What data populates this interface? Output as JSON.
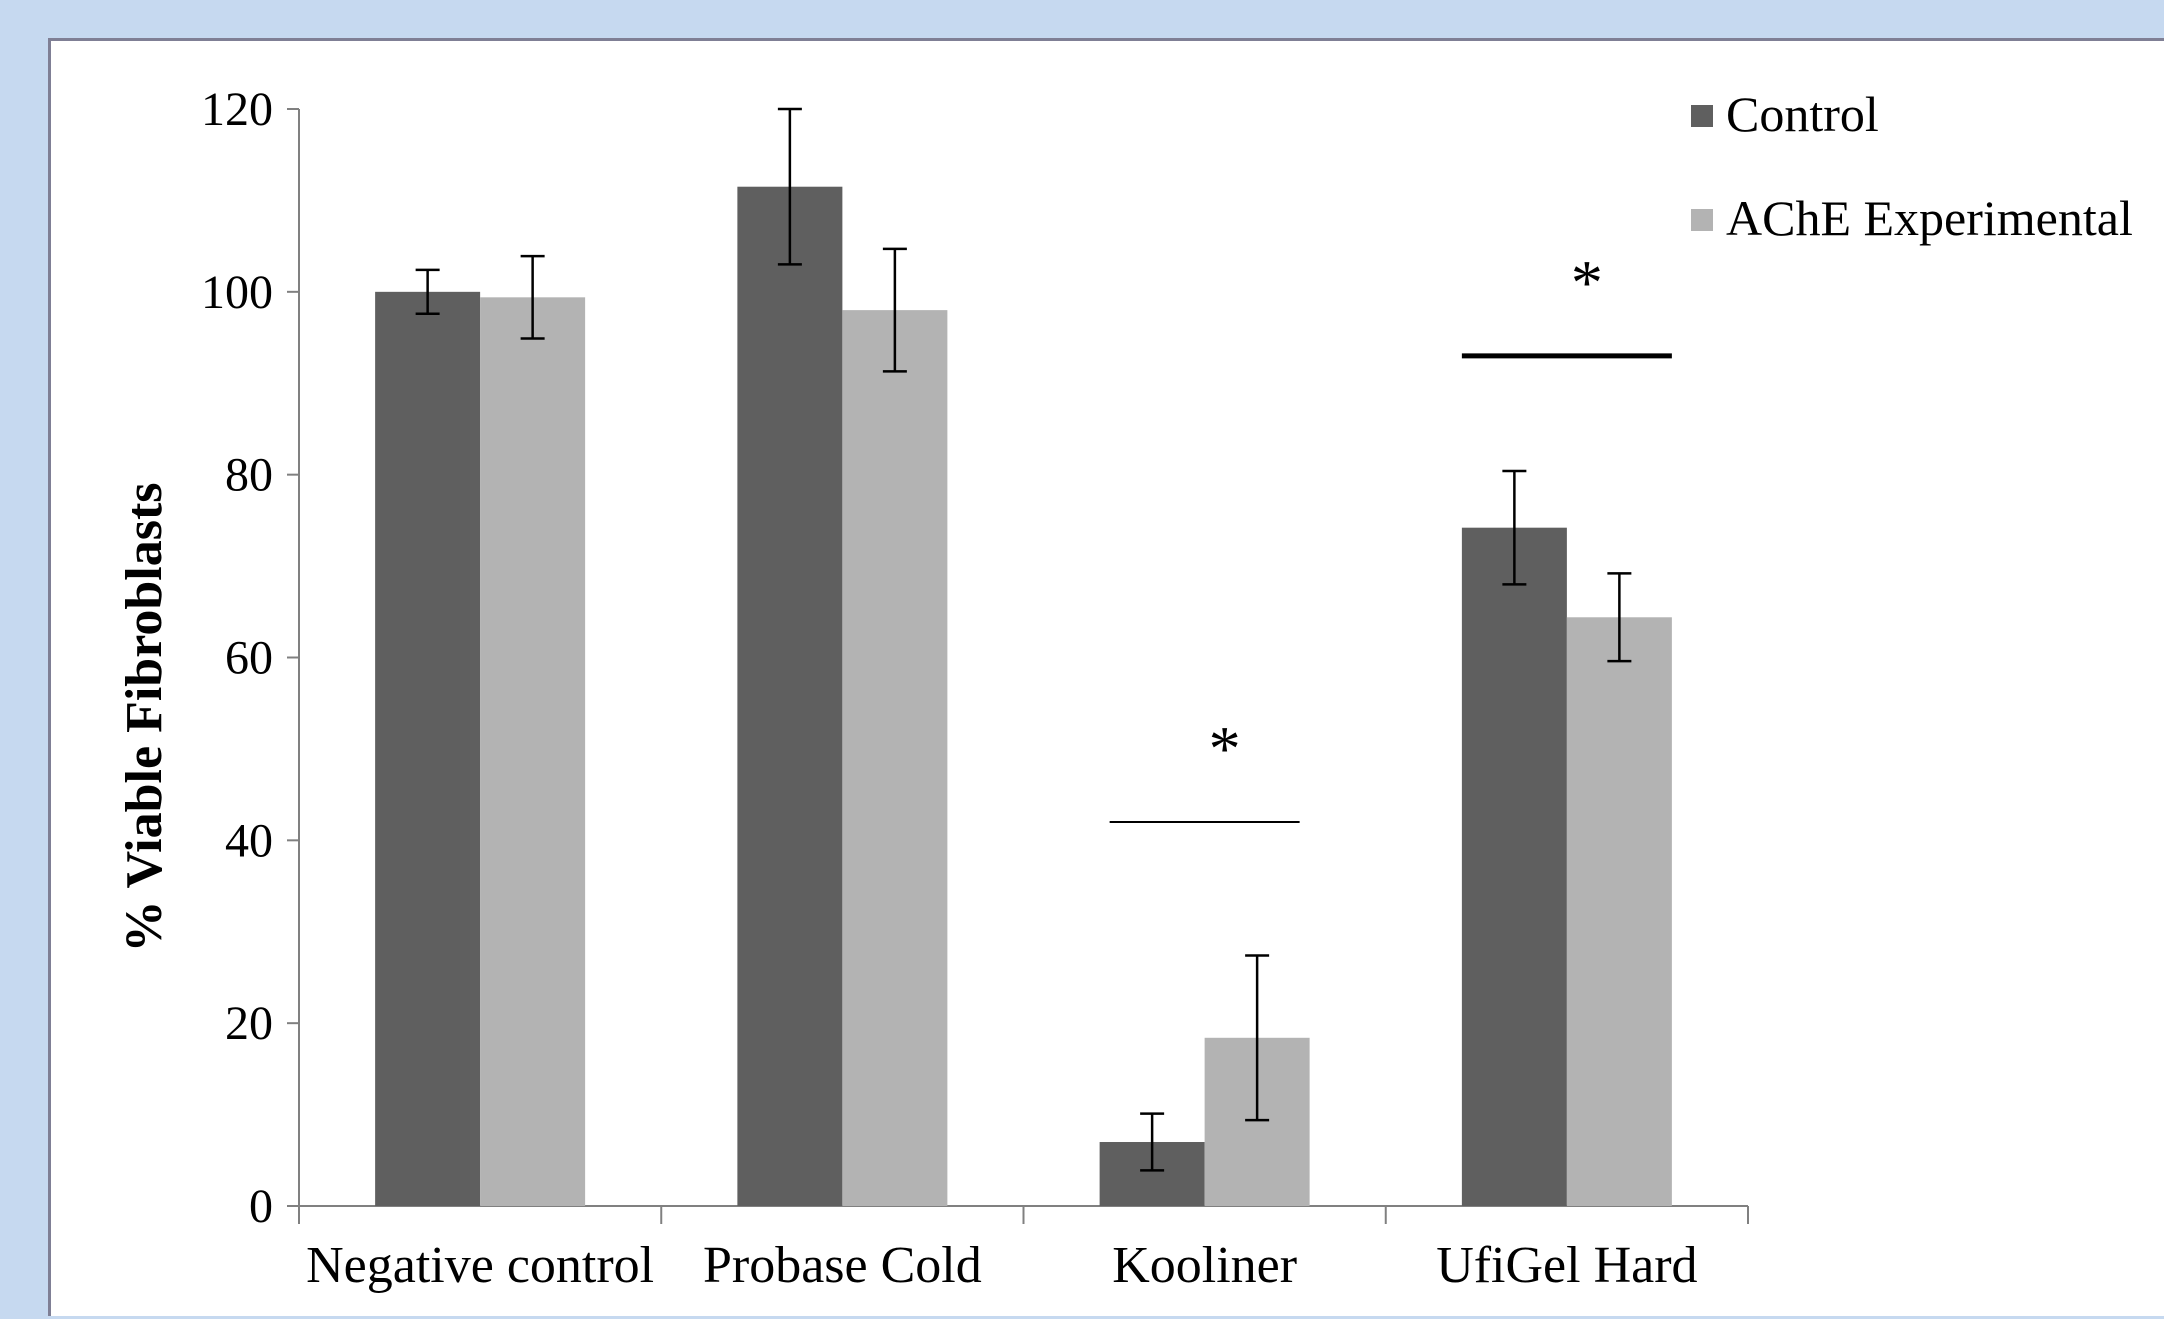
{
  "chart_data": {
    "type": "bar",
    "title": "",
    "xlabel": "",
    "ylabel": "% Viable Fibroblasts",
    "ylim": [
      0,
      120
    ],
    "yticks": [
      0,
      20,
      40,
      60,
      80,
      100,
      120
    ],
    "categories": [
      "Negative control",
      "Probase Cold",
      "Kooliner",
      "UfiGel Hard"
    ],
    "series": [
      {
        "name": "Control",
        "color": "#5f5f5f",
        "values": [
          100,
          111.5,
          7,
          74.2
        ],
        "error": [
          2.4,
          8.5,
          3.1,
          6.2
        ]
      },
      {
        "name": "AChE Experimental",
        "color": "#b3b3b3",
        "values": [
          99.4,
          98,
          18.4,
          64.4
        ],
        "error": [
          4.5,
          6.7,
          9.0,
          4.8
        ]
      }
    ],
    "legend": {
      "position": "top-right",
      "labels": [
        "Control",
        "AChE Experimental"
      ]
    },
    "annotations": [
      {
        "text": "*",
        "category": "Kooliner",
        "line_y": 42
      },
      {
        "text": "*",
        "category": "UfiGel Hard",
        "line_y": 93
      }
    ],
    "grid": false
  }
}
